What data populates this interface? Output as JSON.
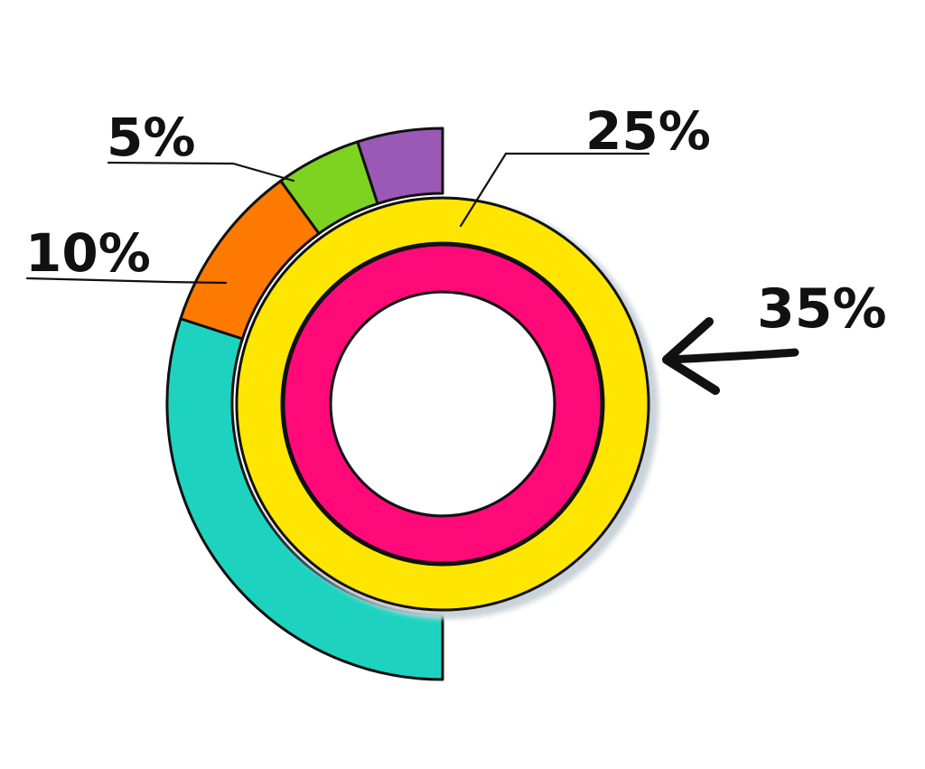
{
  "chart_data": {
    "type": "pie",
    "style": "hand-drawn nested donut (half-ring outer track with concentric inner rings)",
    "outer_half_ring": [
      {
        "label": "5%",
        "value": 5,
        "color": "#9b59b6"
      },
      {
        "label": "5%",
        "value": 5,
        "color": "#7ed321"
      },
      {
        "label": "10%",
        "value": 10,
        "color": "#ff7a00"
      },
      {
        "label": "",
        "value": 30,
        "color": "#1dd3c0"
      }
    ],
    "inner_rings": [
      {
        "label": "25%",
        "value": 25,
        "color": "#ffe600"
      },
      {
        "label": "",
        "value": 35,
        "color": "#ff0a78"
      }
    ],
    "annotations": {
      "five": {
        "text": "5%"
      },
      "ten": {
        "text": "10%"
      },
      "twentyfive": {
        "text": "25%"
      },
      "thirtyfive": {
        "text": "35%"
      }
    }
  }
}
